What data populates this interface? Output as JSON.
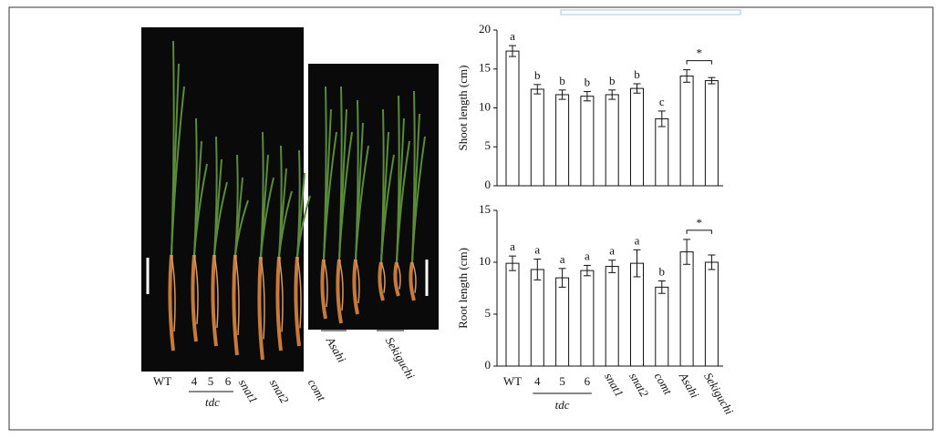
{
  "photos": {
    "labels": [
      "WT",
      "4",
      "5",
      "6",
      "snat1",
      "snat2",
      "comt",
      "Asahi",
      "Sekiguchi"
    ],
    "group_label": "tdc"
  },
  "chart_data": [
    {
      "type": "bar",
      "y_label": "Shoot length (cm)",
      "values": [
        17.3,
        12.4,
        11.7,
        11.5,
        11.7,
        12.5,
        8.6,
        14.1,
        13.5
      ],
      "errors": [
        0.7,
        0.6,
        0.6,
        0.6,
        0.6,
        0.6,
        1.0,
        0.8,
        0.4
      ],
      "annotations": [
        "a",
        "b",
        "b",
        "b",
        "b",
        "b",
        "c",
        null,
        null
      ],
      "significance": "*",
      "ylim": [
        0,
        20
      ],
      "yticks": [
        0,
        5,
        10,
        15,
        20
      ],
      "color": "#ffffff"
    },
    {
      "type": "bar",
      "y_label": "Root length (cm)",
      "categories": [
        "WT",
        "4",
        "5",
        "6",
        "snat1",
        "snat2",
        "comt",
        "Asahi",
        "Sekiguchi"
      ],
      "groups": [
        {
          "label": "tdc",
          "categories": [
            "4",
            "5",
            "6"
          ]
        }
      ],
      "values": [
        9.9,
        9.3,
        8.5,
        9.2,
        9.6,
        9.9,
        7.6,
        11.0,
        10.0
      ],
      "errors": [
        0.7,
        1.0,
        0.9,
        0.5,
        0.6,
        1.3,
        0.6,
        1.2,
        0.7
      ],
      "annotations": [
        "a",
        "a",
        "a",
        "a",
        "a",
        "a",
        "b",
        null,
        null
      ],
      "significance": "*",
      "ylim": [
        0,
        15
      ],
      "yticks": [
        0,
        5,
        10,
        15
      ],
      "color": "#ffffff"
    }
  ]
}
